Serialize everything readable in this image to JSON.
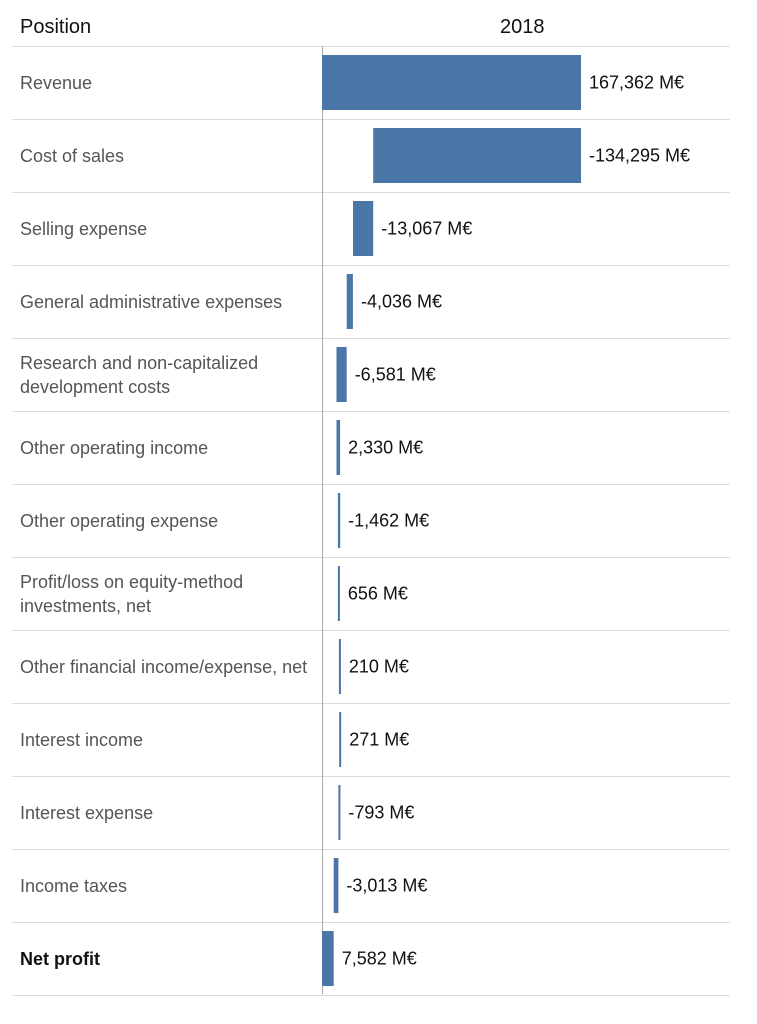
{
  "header": {
    "position_label": "Position",
    "year_label": "2018"
  },
  "colors": {
    "bar": "#4a76a8"
  },
  "chart_data": {
    "type": "bar",
    "subtype": "waterfall",
    "unit": "M€",
    "categories": [
      "Revenue",
      "Cost of sales",
      "Selling expense",
      "General administrative expenses",
      "Research and non-capitalized development costs",
      "Other operating income",
      "Other operating expense",
      "Profit/loss on equity-method investments, net",
      "Other financial income/expense, net",
      "Interest income",
      "Interest expense",
      "Income taxes",
      "Net profit"
    ],
    "values": [
      167362,
      -134295,
      -13067,
      -4036,
      -6581,
      2330,
      -1462,
      656,
      210,
      271,
      -793,
      -3013,
      7582
    ],
    "value_labels": [
      "167,362 M€",
      "-134,295 M€",
      "-13,067 M€",
      "-4,036 M€",
      "-6,581 M€",
      "2,330 M€",
      "-1,462 M€",
      "656 M€",
      "210 M€",
      "271 M€",
      "-793 M€",
      "-3,013 M€",
      "7,582 M€"
    ],
    "total_rows": [
      0,
      12
    ]
  }
}
